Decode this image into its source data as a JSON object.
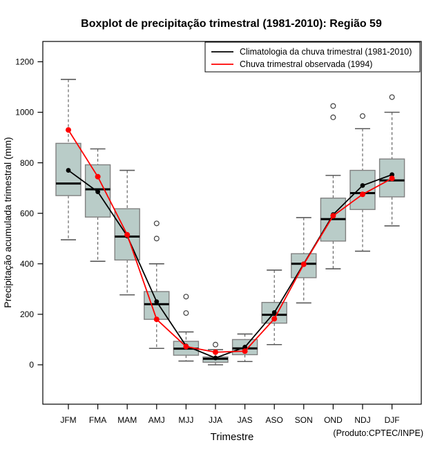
{
  "chart_data": {
    "type": "boxplot",
    "title": "Boxplot de precipitação trimestral (1981-2010): Região 59",
    "xlabel": "Trimestre",
    "ylabel": "Precipitação acumulada trimestral (mm)",
    "footnote": "(Produto:CPTEC/INPE)",
    "categories": [
      "JFM",
      "FMA",
      "MAM",
      "AMJ",
      "MJJ",
      "JJA",
      "JAS",
      "ASO",
      "SON",
      "OND",
      "NDJ",
      "DJF"
    ],
    "y_ticks": [
      0,
      200,
      400,
      600,
      800,
      1000,
      1200
    ],
    "ylim": [
      0,
      1200
    ],
    "grid": false,
    "legend_position": "top-right",
    "boxes": [
      {
        "category": "JFM",
        "min": 495,
        "q1": 670,
        "median": 718,
        "q3": 877,
        "max": 1130,
        "outliers": []
      },
      {
        "category": "FMA",
        "min": 410,
        "q1": 585,
        "median": 695,
        "q3": 792,
        "max": 855,
        "outliers": []
      },
      {
        "category": "MAM",
        "min": 277,
        "q1": 415,
        "median": 508,
        "q3": 618,
        "max": 770,
        "outliers": []
      },
      {
        "category": "AMJ",
        "min": 65,
        "q1": 180,
        "median": 240,
        "q3": 290,
        "max": 400,
        "outliers": [
          560,
          500
        ]
      },
      {
        "category": "MJJ",
        "min": 15,
        "q1": 38,
        "median": 64,
        "q3": 93,
        "max": 130,
        "outliers": [
          270,
          205
        ]
      },
      {
        "category": "JJA",
        "min": 0,
        "q1": 10,
        "median": 24,
        "q3": 31,
        "max": 60,
        "outliers": [
          80
        ]
      },
      {
        "category": "JAS",
        "min": 13,
        "q1": 40,
        "median": 65,
        "q3": 100,
        "max": 122,
        "outliers": []
      },
      {
        "category": "ASO",
        "min": 80,
        "q1": 165,
        "median": 198,
        "q3": 247,
        "max": 375,
        "outliers": []
      },
      {
        "category": "SON",
        "min": 245,
        "q1": 345,
        "median": 400,
        "q3": 440,
        "max": 583,
        "outliers": []
      },
      {
        "category": "OND",
        "min": 380,
        "q1": 490,
        "median": 577,
        "q3": 660,
        "max": 750,
        "outliers": [
          1025,
          980
        ]
      },
      {
        "category": "NDJ",
        "min": 450,
        "q1": 615,
        "median": 680,
        "q3": 770,
        "max": 935,
        "outliers": [
          985
        ]
      },
      {
        "category": "DJF",
        "min": 550,
        "q1": 665,
        "median": 730,
        "q3": 815,
        "max": 1000,
        "outliers": [
          1060
        ]
      }
    ],
    "series": [
      {
        "name": "Climatologia da chuva trimestral (1981-2010)",
        "color": "#000000",
        "values": [
          770,
          685,
          510,
          250,
          75,
          27,
          70,
          207,
          400,
          595,
          710,
          753
        ]
      },
      {
        "name": "Chuva trimestral observada (1994)",
        "color": "#ff0000",
        "values": [
          930,
          745,
          515,
          180,
          72,
          50,
          54,
          182,
          398,
          590,
          675,
          738
        ]
      }
    ],
    "colors": {
      "box_fill": "#b9ccc8",
      "box_border": "#808080",
      "median": "#000000",
      "whisker": "#595959",
      "outlier_stroke": "#404040",
      "climatology_line": "#000000",
      "observed_line": "#ff0000",
      "plot_border": "#000000"
    }
  }
}
